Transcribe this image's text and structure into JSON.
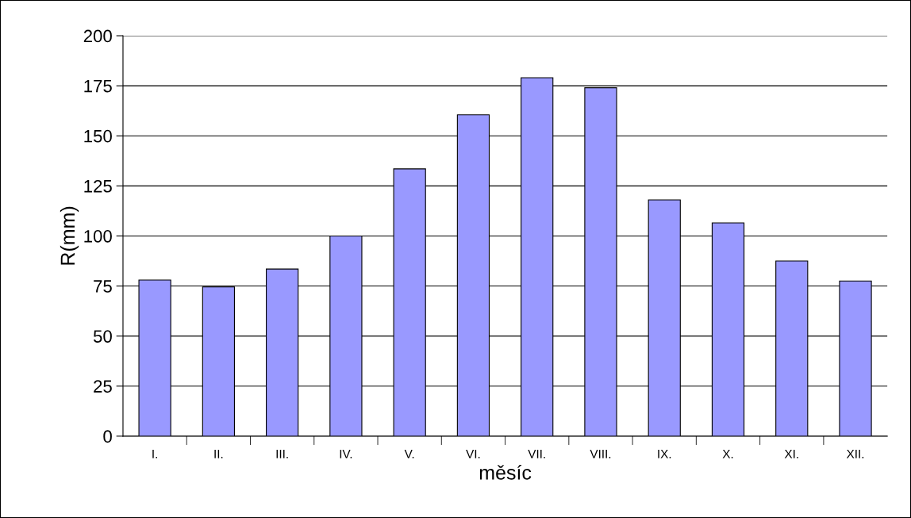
{
  "chart_data": {
    "type": "bar",
    "xlabel": "měsíc",
    "ylabel": "R(mm)",
    "categories": [
      "I.",
      "II.",
      "III.",
      "IV.",
      "V.",
      "VI.",
      "VII.",
      "VIII.",
      "IX.",
      "X.",
      "XI.",
      "XII."
    ],
    "values": [
      78,
      74.5,
      83.5,
      100,
      133.5,
      160.5,
      179,
      174,
      118,
      106.5,
      87.5,
      77.5
    ],
    "color": "#9999ff",
    "ylim": [
      0,
      200
    ],
    "yticks": [
      0,
      25,
      50,
      75,
      100,
      125,
      150,
      175,
      200
    ],
    "grid": "y",
    "legend": false
  }
}
